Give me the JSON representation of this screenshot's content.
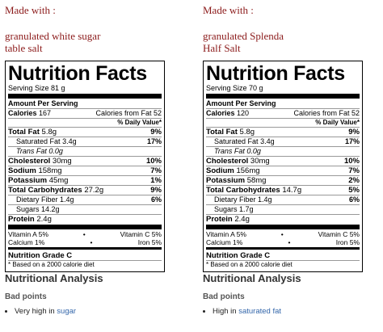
{
  "left": {
    "made_with_title": "Made with :",
    "ingredients": [
      "granulated white sugar",
      "table salt"
    ],
    "nutrition": {
      "title": "Nutrition Facts",
      "serving_size": "Serving Size 81 g",
      "amount_per_serving": "Amount Per Serving",
      "calories_label": "Calories",
      "calories_value": "167",
      "calories_from_fat": "Calories from Fat 52",
      "dv_header": "% Daily Value*",
      "total_fat_label": "Total Fat",
      "total_fat_value": "5.8g",
      "total_fat_dv": "9%",
      "sat_fat_label": "Saturated Fat",
      "sat_fat_value": "3.4g",
      "sat_fat_dv": "17%",
      "trans_fat": "Trans Fat 0.0g",
      "cholesterol_label": "Cholesterol",
      "cholesterol_value": "30mg",
      "cholesterol_dv": "10%",
      "sodium_label": "Sodium",
      "sodium_value": "158mg",
      "sodium_dv": "7%",
      "potassium_label": "Potassium",
      "potassium_value": "45mg",
      "potassium_dv": "1%",
      "carbs_label": "Total Carbohydrates",
      "carbs_value": "27.2g",
      "carbs_dv": "9%",
      "fiber_label": "Dietary Fiber",
      "fiber_value": "1.4g",
      "fiber_dv": "6%",
      "sugars": "Sugars 14.2g",
      "protein_label": "Protein",
      "protein_value": "2.4g",
      "vitamin_a": "Vitamin A 5%",
      "vitamin_c": "Vitamin C 5%",
      "calcium": "Calcium 1%",
      "iron": "Iron 5%",
      "grade": "Nutrition Grade C",
      "footnote": "* Based on a 2000 calorie diet"
    },
    "analysis": {
      "heading": "Nutritional Analysis",
      "bad_points": "Bad points",
      "item_prefix": "Very high in ",
      "item_link": "sugar"
    }
  },
  "right": {
    "made_with_title": "Made with :",
    "ingredients": [
      "granulated Splenda",
      "Half Salt"
    ],
    "nutrition": {
      "title": "Nutrition Facts",
      "serving_size": "Serving Size 70 g",
      "amount_per_serving": "Amount Per Serving",
      "calories_label": "Calories",
      "calories_value": "120",
      "calories_from_fat": "Calories from Fat 52",
      "dv_header": "% Daily Value*",
      "total_fat_label": "Total Fat",
      "total_fat_value": "5.8g",
      "total_fat_dv": "9%",
      "sat_fat_label": "Saturated Fat",
      "sat_fat_value": "3.4g",
      "sat_fat_dv": "17%",
      "trans_fat": "Trans Fat 0.0g",
      "cholesterol_label": "Cholesterol",
      "cholesterol_value": "30mg",
      "cholesterol_dv": "10%",
      "sodium_label": "Sodium",
      "sodium_value": "156mg",
      "sodium_dv": "7%",
      "potassium_label": "Potassium",
      "potassium_value": "58mg",
      "potassium_dv": "2%",
      "carbs_label": "Total Carbohydrates",
      "carbs_value": "14.7g",
      "carbs_dv": "5%",
      "fiber_label": "Dietary Fiber",
      "fiber_value": "1.4g",
      "fiber_dv": "6%",
      "sugars": "Sugars 1.7g",
      "protein_label": "Protein",
      "protein_value": "2.4g",
      "vitamin_a": "Vitamin A 5%",
      "vitamin_c": "Vitamin C 5%",
      "calcium": "Calcium 1%",
      "iron": "Iron 5%",
      "grade": "Nutrition Grade C",
      "footnote": "* Based on a 2000 calorie diet"
    },
    "analysis": {
      "heading": "Nutritional Analysis",
      "bad_points": "Bad points",
      "item_prefix": "High in ",
      "item_link": "saturated fat"
    }
  },
  "colors": {
    "made_with": "#8b1a1a",
    "link": "#3366aa"
  },
  "separator_dot": "•"
}
